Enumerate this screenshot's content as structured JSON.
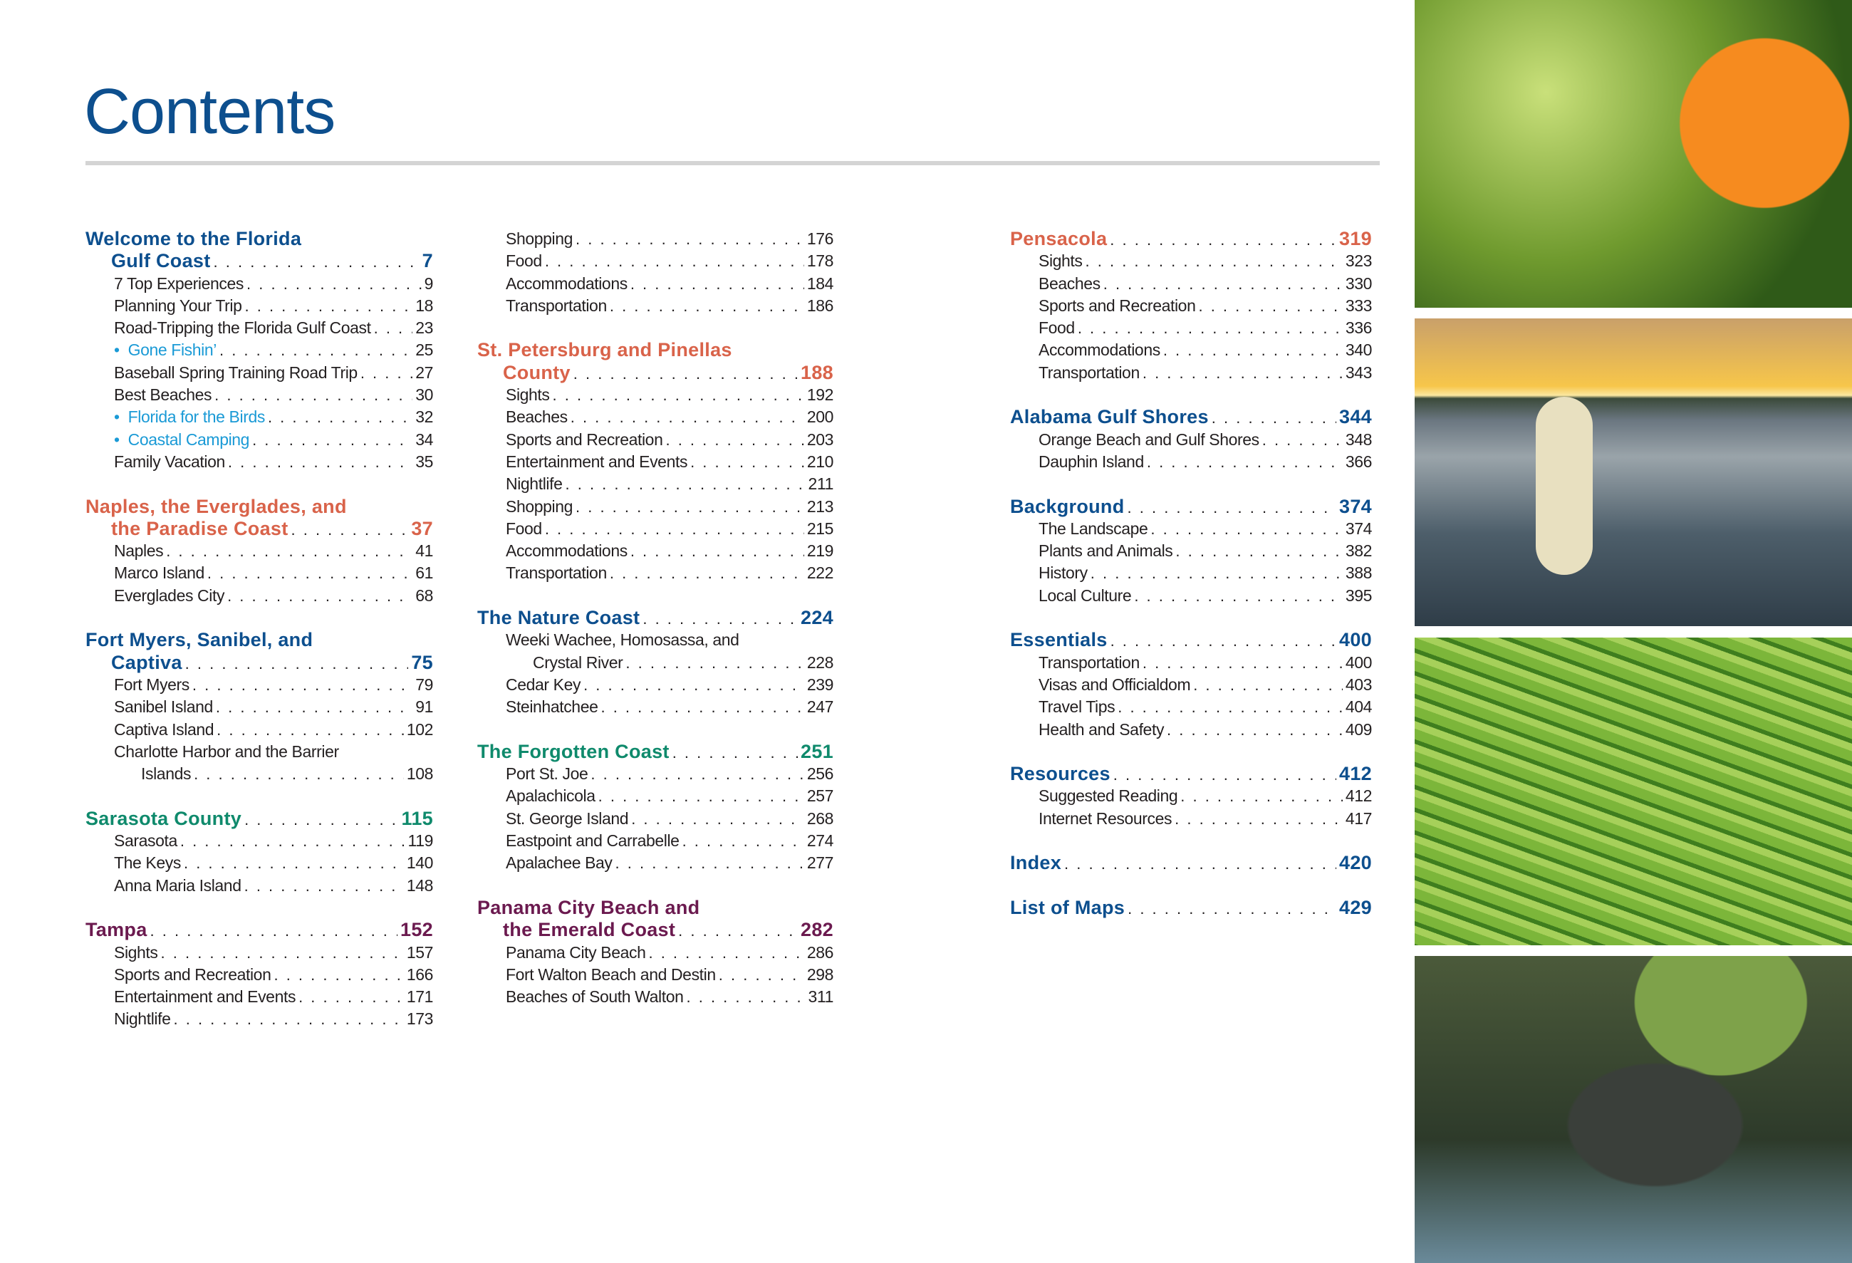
{
  "page": {
    "title": "Contents",
    "colors": {
      "blue": "#0d4f8e",
      "orange": "#d9634a",
      "green": "#0f8a6c",
      "purple": "#6b1a4f",
      "sidebar": "#1a9ad6",
      "rule": "#d4d4d4"
    }
  },
  "columns": [
    [
      {
        "title": "Welcome to the Florida",
        "title2": "Gulf Coast",
        "page": "7",
        "color": "blue",
        "items": [
          {
            "label": "7 Top Experiences",
            "page": "9"
          },
          {
            "label": "Planning Your Trip",
            "page": "18"
          },
          {
            "label": "Road-Tripping the Florida Gulf Coast",
            "page": "23"
          },
          {
            "label": "Gone Fishin’",
            "page": "25",
            "sidebar": true
          },
          {
            "label": "Baseball Spring Training Road Trip",
            "page": "27"
          },
          {
            "label": "Best Beaches",
            "page": "30"
          },
          {
            "label": "Florida for the Birds",
            "page": "32",
            "sidebar": true
          },
          {
            "label": "Coastal Camping",
            "page": "34",
            "sidebar": true
          },
          {
            "label": "Family Vacation",
            "page": "35"
          }
        ]
      },
      {
        "title": "Naples, the Everglades, and",
        "title2": "the Paradise Coast",
        "page": "37",
        "color": "orange",
        "items": [
          {
            "label": "Naples",
            "page": "41"
          },
          {
            "label": "Marco Island",
            "page": "61"
          },
          {
            "label": "Everglades City",
            "page": "68"
          }
        ]
      },
      {
        "title": "Fort Myers, Sanibel, and",
        "title2": "Captiva",
        "page": "75",
        "color": "blue",
        "items": [
          {
            "label": "Fort Myers",
            "page": "79"
          },
          {
            "label": "Sanibel Island",
            "page": "91"
          },
          {
            "label": "Captiva Island",
            "page": "102"
          },
          {
            "label": "Charlotte Harbor and the Barrier",
            "label2": "Islands",
            "page": "108"
          }
        ]
      },
      {
        "title": "Sarasota County",
        "page": "115",
        "color": "green",
        "items": [
          {
            "label": "Sarasota",
            "page": "119"
          },
          {
            "label": "The Keys",
            "page": "140"
          },
          {
            "label": "Anna Maria Island",
            "page": "148"
          }
        ]
      },
      {
        "title": "Tampa",
        "page": "152",
        "color": "purple",
        "items": [
          {
            "label": "Sights",
            "page": "157"
          },
          {
            "label": "Sports and Recreation",
            "page": "166"
          },
          {
            "label": "Entertainment and Events",
            "page": "171"
          },
          {
            "label": "Nightlife",
            "page": "173"
          }
        ]
      }
    ],
    [
      {
        "items": [
          {
            "label": "Shopping",
            "page": "176"
          },
          {
            "label": "Food",
            "page": "178"
          },
          {
            "label": "Accommodations",
            "page": "184"
          },
          {
            "label": "Transportation",
            "page": "186"
          }
        ]
      },
      {
        "title": "St. Petersburg and Pinellas",
        "title2": "County",
        "page": "188",
        "color": "orange",
        "items": [
          {
            "label": "Sights",
            "page": "192"
          },
          {
            "label": "Beaches",
            "page": "200"
          },
          {
            "label": "Sports and Recreation",
            "page": "203"
          },
          {
            "label": "Entertainment and Events",
            "page": "210"
          },
          {
            "label": "Nightlife",
            "page": "211"
          },
          {
            "label": "Shopping",
            "page": "213"
          },
          {
            "label": "Food",
            "page": "215"
          },
          {
            "label": "Accommodations",
            "page": "219"
          },
          {
            "label": "Transportation",
            "page": "222"
          }
        ]
      },
      {
        "title": "The Nature Coast",
        "page": "224",
        "color": "blue",
        "items": [
          {
            "label": "Weeki Wachee, Homosassa, and",
            "label2": "Crystal River",
            "page": "228"
          },
          {
            "label": "Cedar Key",
            "page": "239"
          },
          {
            "label": "Steinhatchee",
            "page": "247"
          }
        ]
      },
      {
        "title": "The Forgotten Coast",
        "page": "251",
        "color": "green",
        "items": [
          {
            "label": "Port St. Joe",
            "page": "256"
          },
          {
            "label": "Apalachicola",
            "page": "257"
          },
          {
            "label": "St. George Island",
            "page": "268"
          },
          {
            "label": "Eastpoint and Carrabelle",
            "page": "274"
          },
          {
            "label": "Apalachee Bay",
            "page": "277"
          }
        ]
      },
      {
        "title": "Panama City Beach and",
        "title2": "the Emerald Coast",
        "page": "282",
        "color": "purple",
        "items": [
          {
            "label": "Panama City Beach",
            "page": "286"
          },
          {
            "label": "Fort Walton Beach and Destin",
            "page": "298"
          },
          {
            "label": "Beaches of South Walton",
            "page": "311"
          }
        ]
      }
    ],
    [
      {
        "title": "Pensacola",
        "page": "319",
        "color": "orange",
        "items": [
          {
            "label": "Sights",
            "page": "323"
          },
          {
            "label": "Beaches",
            "page": "330"
          },
          {
            "label": "Sports and Recreation",
            "page": "333"
          },
          {
            "label": "Food",
            "page": "336"
          },
          {
            "label": "Accommodations",
            "page": "340"
          },
          {
            "label": "Transportation",
            "page": "343"
          }
        ]
      },
      {
        "title": "Alabama Gulf Shores",
        "page": "344",
        "color": "blue",
        "items": [
          {
            "label": "Orange Beach and Gulf Shores",
            "page": "348"
          },
          {
            "label": "Dauphin Island",
            "page": "366"
          }
        ]
      },
      {
        "title": "Background",
        "page": "374",
        "color": "blue",
        "items": [
          {
            "label": "The Landscape",
            "page": "374"
          },
          {
            "label": "Plants and Animals",
            "page": "382"
          },
          {
            "label": "History",
            "page": "388"
          },
          {
            "label": "Local Culture",
            "page": "395"
          }
        ]
      },
      {
        "title": "Essentials",
        "page": "400",
        "color": "blue",
        "items": [
          {
            "label": "Transportation",
            "page": "400"
          },
          {
            "label": "Visas and Officialdom",
            "page": "403"
          },
          {
            "label": "Travel Tips",
            "page": "404"
          },
          {
            "label": "Health and Safety",
            "page": "409"
          }
        ]
      },
      {
        "title": "Resources",
        "page": "412",
        "color": "blue",
        "items": [
          {
            "label": "Suggested Reading",
            "page": "412"
          },
          {
            "label": "Internet Resources",
            "page": "417"
          }
        ]
      },
      {
        "title": "Index",
        "page": "420",
        "color": "blue",
        "items": []
      },
      {
        "title": "List of Maps",
        "page": "429",
        "color": "blue",
        "items": []
      }
    ]
  ],
  "photos": [
    {
      "subject": "orange-on-tree"
    },
    {
      "subject": "kayaker-at-sunset"
    },
    {
      "subject": "palm-frond"
    },
    {
      "subject": "alligator-in-lily-pads"
    }
  ]
}
